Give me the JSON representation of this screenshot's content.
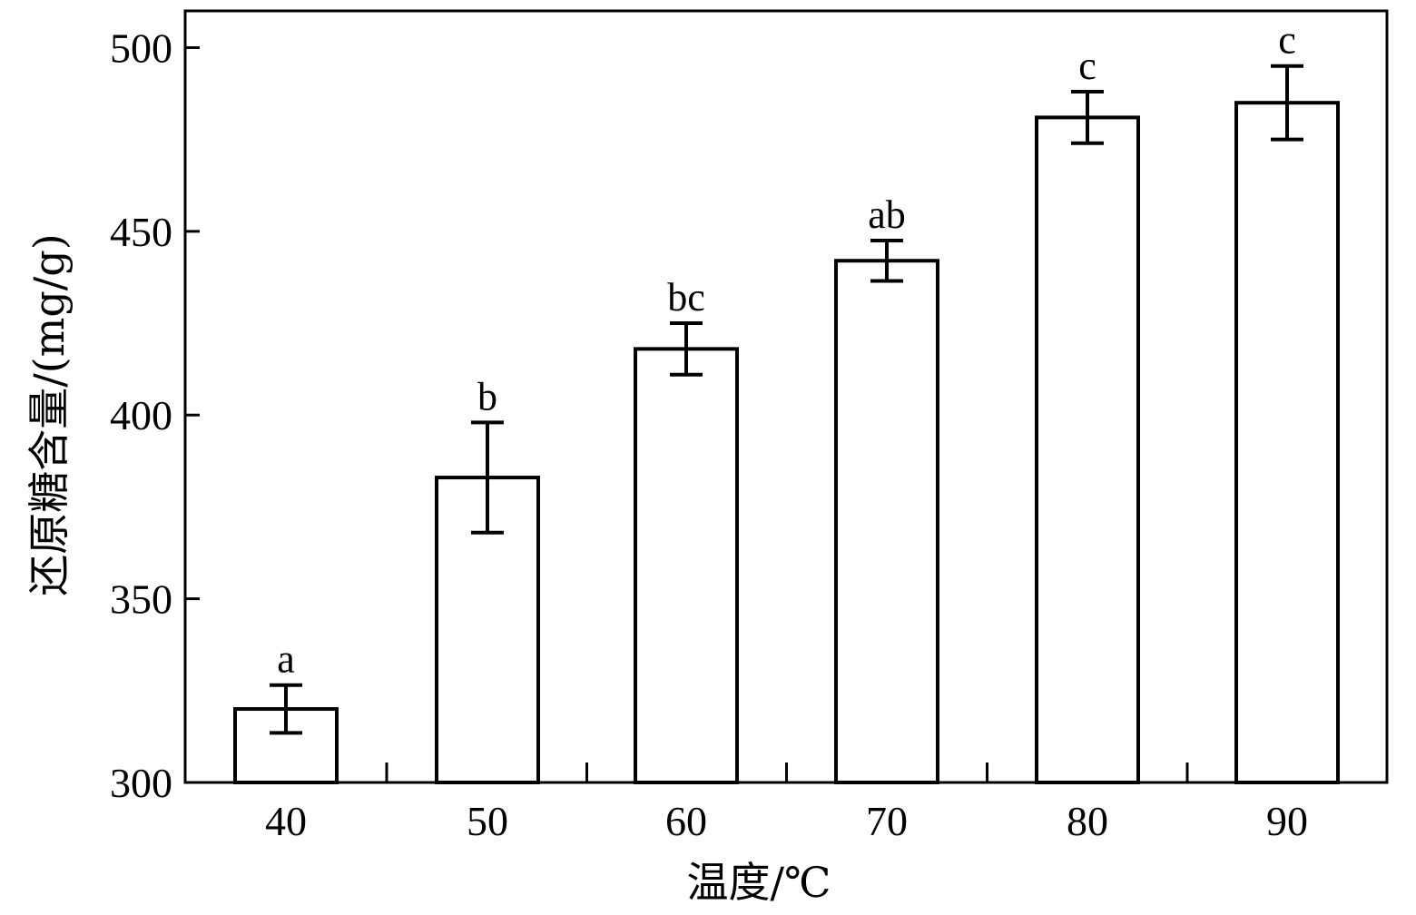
{
  "chart_data": {
    "type": "bar",
    "title": "",
    "xlabel": "温度/℃",
    "ylabel": "还原糖含量/(mg/g)",
    "categories": [
      "40",
      "50",
      "60",
      "70",
      "80",
      "90"
    ],
    "values": [
      320,
      383,
      418,
      442,
      481,
      485
    ],
    "errors": [
      6.5,
      15,
      7,
      5.5,
      7,
      10
    ],
    "significance_labels": [
      "a",
      "b",
      "bc",
      "ab",
      "c",
      "c"
    ],
    "ylim": [
      300,
      510
    ],
    "yticks": [
      300,
      350,
      400,
      450,
      500
    ],
    "ytick_labels": [
      "300",
      "350",
      "400",
      "450",
      "500"
    ],
    "grid": false,
    "legend": "none",
    "colors": {
      "bar_fill": "#ffffff",
      "bar_stroke": "#000000",
      "axis": "#000000"
    }
  }
}
